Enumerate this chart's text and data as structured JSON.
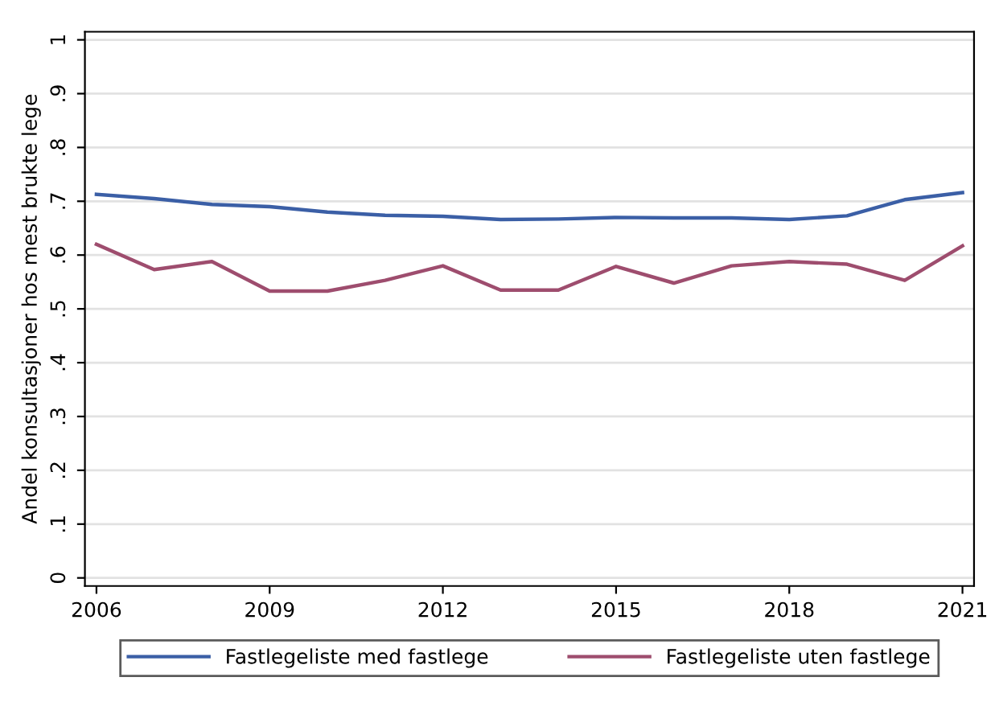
{
  "chart_data": {
    "type": "line",
    "ylabel": "Andel konsultasjoner hos mest brukte lege",
    "x": [
      2006,
      2007,
      2008,
      2009,
      2010,
      2011,
      2012,
      2013,
      2014,
      2015,
      2016,
      2017,
      2018,
      2019,
      2020,
      2021
    ],
    "series": [
      {
        "name": "Fastlegeliste med fastlege",
        "color": "#3b5fa6",
        "values": [
          0.713,
          0.705,
          0.694,
          0.69,
          0.68,
          0.674,
          0.672,
          0.666,
          0.667,
          0.67,
          0.669,
          0.669,
          0.666,
          0.673,
          0.703,
          0.716
        ]
      },
      {
        "name": "Fastlegeliste uten fastlege",
        "color": "#9e4d6e",
        "values": [
          0.62,
          0.573,
          0.588,
          0.533,
          0.533,
          0.553,
          0.58,
          0.535,
          0.535,
          0.579,
          0.548,
          0.58,
          0.588,
          0.583,
          0.553,
          0.617
        ]
      }
    ],
    "xlim": [
      2005.8,
      2021.2
    ],
    "xticks": [
      2006,
      2009,
      2012,
      2015,
      2018,
      2021
    ],
    "ylim": [
      -0.015,
      1.015
    ],
    "yticks": [
      {
        "value": 0,
        "label": "0"
      },
      {
        "value": 0.1,
        "label": ".1"
      },
      {
        "value": 0.2,
        "label": ".2"
      },
      {
        "value": 0.3,
        "label": ".3"
      },
      {
        "value": 0.4,
        "label": ".4"
      },
      {
        "value": 0.5,
        "label": ".5"
      },
      {
        "value": 0.6,
        "label": ".6"
      },
      {
        "value": 0.7,
        "label": ".7"
      },
      {
        "value": 0.8,
        "label": ".8"
      },
      {
        "value": 0.9,
        "label": ".9"
      },
      {
        "value": 1,
        "label": "1"
      }
    ],
    "grid": "y",
    "legend": "bottom",
    "marker": "none",
    "line_style": "solid"
  }
}
